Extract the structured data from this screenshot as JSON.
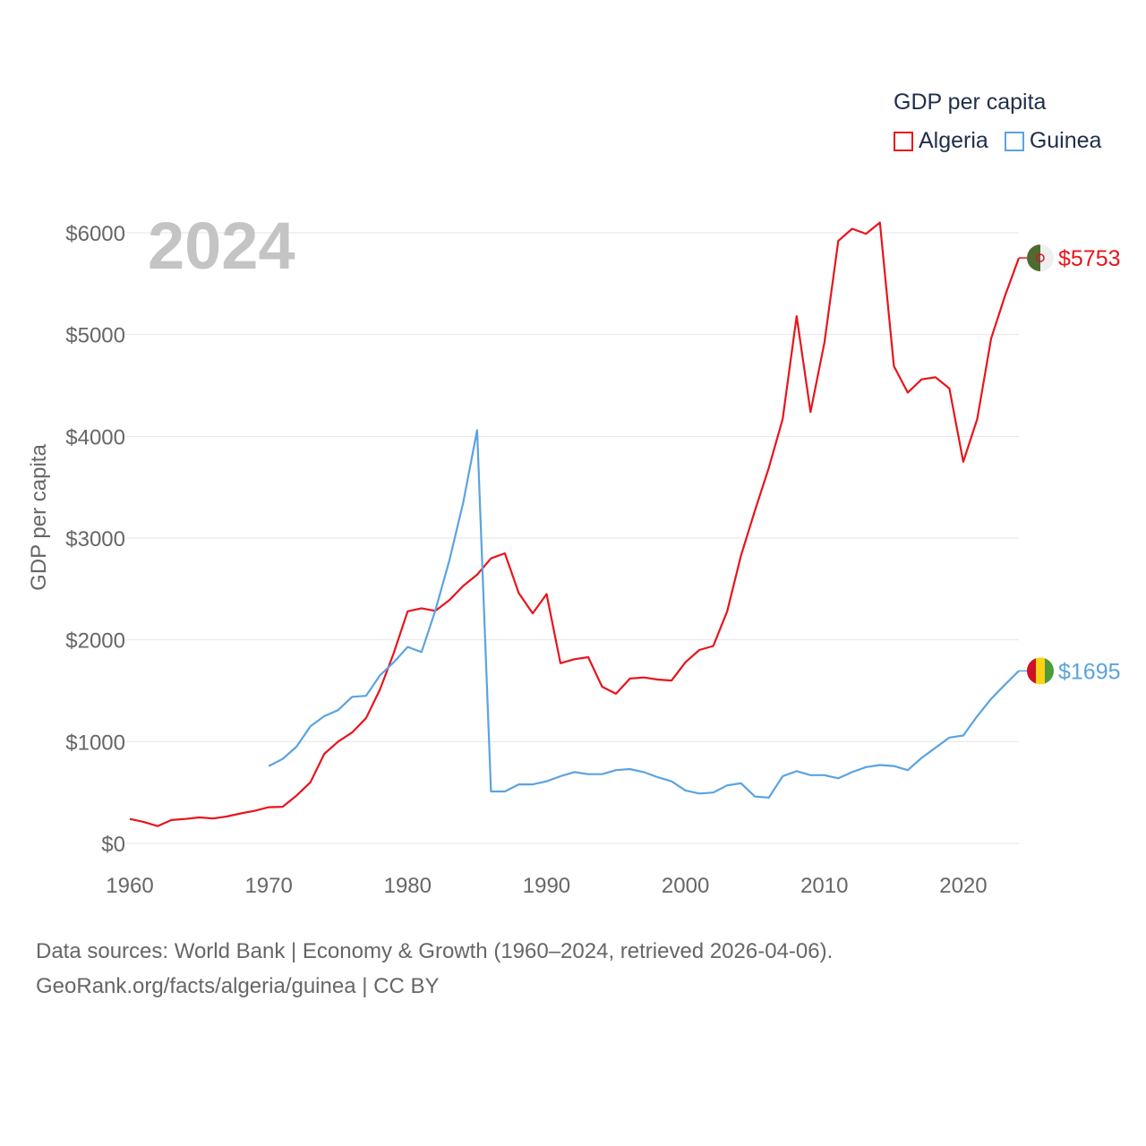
{
  "legend": {
    "title": "GDP per capita",
    "items": [
      {
        "label": "Algeria",
        "color": "#e8141c"
      },
      {
        "label": "Guinea",
        "color": "#5ba3e0"
      }
    ]
  },
  "footer": {
    "line1": "Data sources: World Bank | Economy & Growth (1960–2024, retrieved 2026-04-06).",
    "line2": "GeoRank.org/facts/algeria/guinea | CC BY"
  },
  "chart_data": {
    "type": "line",
    "year_label": "2024",
    "ylabel": "GDP per capita",
    "xlabel": "",
    "xlim": [
      1960,
      2024
    ],
    "ylim": [
      0,
      6000
    ],
    "x_ticks": [
      1960,
      1970,
      1980,
      1990,
      2000,
      2010,
      2020
    ],
    "x_tick_labels": [
      "1960",
      "1970",
      "1980",
      "1990",
      "2000",
      "2010",
      "2020"
    ],
    "y_ticks": [
      0,
      1000,
      2000,
      3000,
      4000,
      5000,
      6000
    ],
    "y_tick_labels": [
      "$0",
      "$1000",
      "$2000",
      "$3000",
      "$4000",
      "$5000",
      "$6000"
    ],
    "grid": true,
    "legend_position": "top-right",
    "series": [
      {
        "name": "Algeria",
        "color": "#e8141c",
        "end_label": "$5753",
        "x": [
          1960,
          1961,
          1962,
          1963,
          1964,
          1965,
          1966,
          1967,
          1968,
          1969,
          1970,
          1971,
          1972,
          1973,
          1974,
          1975,
          1976,
          1977,
          1978,
          1979,
          1980,
          1981,
          1982,
          1983,
          1984,
          1985,
          1986,
          1987,
          1988,
          1989,
          1990,
          1991,
          1992,
          1993,
          1994,
          1995,
          1996,
          1997,
          1998,
          1999,
          2000,
          2001,
          2002,
          2003,
          2004,
          2005,
          2006,
          2007,
          2008,
          2009,
          2010,
          2011,
          2012,
          2013,
          2014,
          2015,
          2016,
          2017,
          2018,
          2019,
          2020,
          2021,
          2022,
          2023,
          2024
        ],
        "values": [
          240,
          210,
          170,
          230,
          240,
          255,
          245,
          265,
          295,
          320,
          355,
          360,
          470,
          600,
          880,
          1000,
          1090,
          1230,
          1510,
          1870,
          2280,
          2310,
          2285,
          2390,
          2530,
          2640,
          2800,
          2850,
          2460,
          2260,
          2450,
          1770,
          1810,
          1830,
          1540,
          1470,
          1620,
          1630,
          1610,
          1600,
          1780,
          1900,
          1940,
          2280,
          2830,
          3270,
          3690,
          4170,
          5180,
          4240,
          4920,
          5920,
          6040,
          5990,
          6100,
          4690,
          4430,
          4560,
          4580,
          4470,
          3750,
          4170,
          4960,
          5380,
          5753
        ]
      },
      {
        "name": "Guinea",
        "color": "#5ba3e0",
        "end_label": "$1695",
        "x": [
          1970,
          1971,
          1972,
          1973,
          1974,
          1975,
          1976,
          1977,
          1978,
          1979,
          1980,
          1981,
          1982,
          1983,
          1984,
          1985,
          1986,
          1987,
          1988,
          1989,
          1990,
          1991,
          1992,
          1993,
          1994,
          1995,
          1996,
          1997,
          1998,
          1999,
          2000,
          2001,
          2002,
          2003,
          2004,
          2005,
          2006,
          2007,
          2008,
          2009,
          2010,
          2011,
          2012,
          2013,
          2014,
          2015,
          2016,
          2017,
          2018,
          2019,
          2020,
          2021,
          2022,
          2023,
          2024
        ],
        "values": [
          760,
          830,
          950,
          1150,
          1250,
          1310,
          1440,
          1450,
          1650,
          1780,
          1930,
          1880,
          2290,
          2780,
          3350,
          4060,
          510,
          510,
          580,
          580,
          610,
          660,
          700,
          680,
          680,
          720,
          730,
          700,
          650,
          610,
          520,
          490,
          500,
          570,
          590,
          460,
          450,
          660,
          710,
          670,
          670,
          640,
          700,
          750,
          770,
          760,
          720,
          840,
          940,
          1040,
          1060,
          1250,
          1420,
          1560,
          1695
        ]
      }
    ]
  }
}
